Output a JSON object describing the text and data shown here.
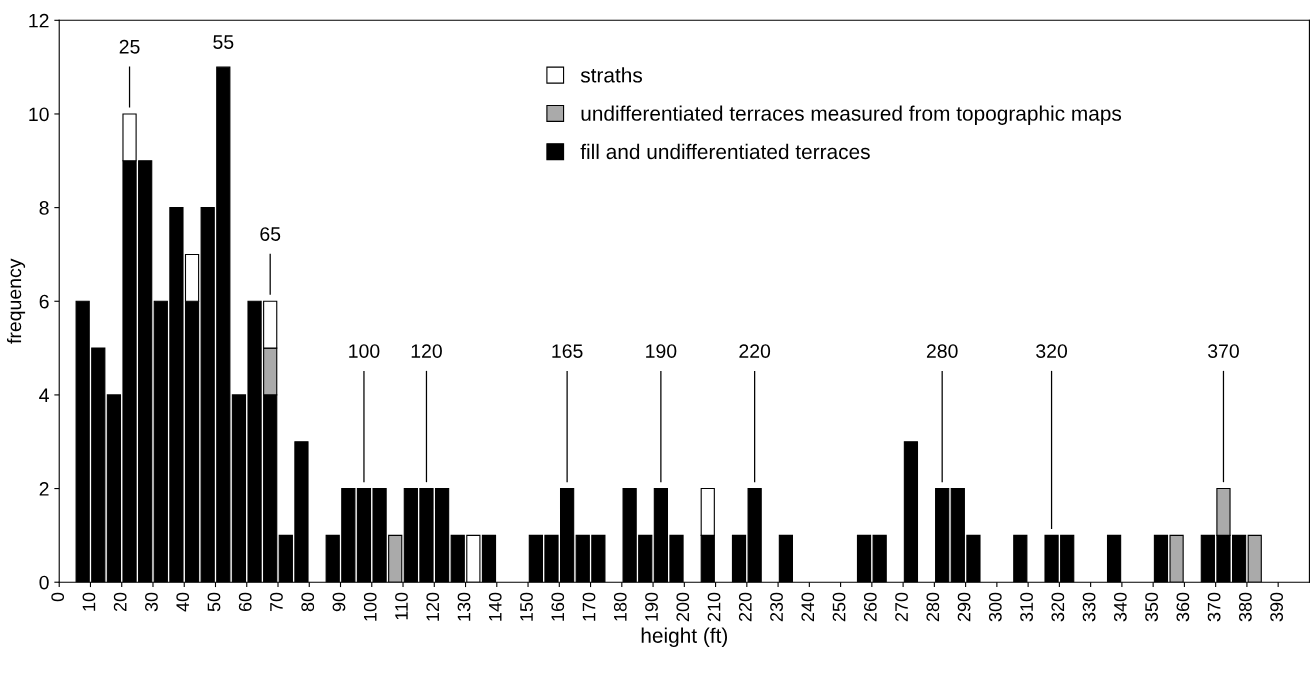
{
  "chart_data": {
    "type": "bar",
    "stacked": true,
    "xlabel": "height (ft)",
    "ylabel": "frequency",
    "x": [
      7.5,
      12.5,
      17.5,
      22.5,
      27.5,
      32.5,
      37.5,
      42.5,
      47.5,
      52.5,
      57.5,
      62.5,
      67.5,
      72.5,
      77.5,
      82.5,
      87.5,
      92.5,
      97.5,
      102.5,
      107.5,
      112.5,
      117.5,
      122.5,
      127.5,
      132.5,
      137.5,
      142.5,
      147.5,
      152.5,
      157.5,
      162.5,
      167.5,
      172.5,
      177.5,
      182.5,
      187.5,
      192.5,
      197.5,
      202.5,
      207.5,
      212.5,
      217.5,
      222.5,
      227.5,
      232.5,
      237.5,
      242.5,
      247.5,
      252.5,
      257.5,
      262.5,
      267.5,
      272.5,
      277.5,
      282.5,
      287.5,
      292.5,
      297.5,
      302.5,
      307.5,
      312.5,
      317.5,
      322.5,
      327.5,
      332.5,
      337.5,
      342.5,
      347.5,
      352.5,
      357.5,
      362.5,
      367.5,
      372.5,
      377.5,
      382.5
    ],
    "series": [
      {
        "name": "fill and undifferentiated terraces",
        "color": "#000000",
        "values": [
          6,
          5,
          4,
          9,
          9,
          6,
          8,
          6,
          8,
          11,
          4,
          6,
          4,
          1,
          3,
          0,
          1,
          2,
          2,
          2,
          0,
          2,
          2,
          2,
          1,
          0,
          1,
          0,
          0,
          1,
          1,
          2,
          1,
          1,
          0,
          2,
          1,
          2,
          1,
          0,
          1,
          0,
          1,
          2,
          0,
          1,
          0,
          0,
          0,
          0,
          1,
          1,
          0,
          3,
          0,
          2,
          2,
          1,
          0,
          0,
          1,
          0,
          1,
          1,
          0,
          0,
          1,
          0,
          0,
          1,
          0,
          0,
          1,
          1,
          1,
          0
        ]
      },
      {
        "name": "undifferentiated terraces measured from topographic maps",
        "color": "#aaaaaa",
        "values": [
          0,
          0,
          0,
          0,
          0,
          0,
          0,
          0,
          0,
          0,
          0,
          0,
          1,
          0,
          0,
          0,
          0,
          0,
          0,
          0,
          1,
          0,
          0,
          0,
          0,
          0,
          0,
          0,
          0,
          0,
          0,
          0,
          0,
          0,
          0,
          0,
          0,
          0,
          0,
          0,
          0,
          0,
          0,
          0,
          0,
          0,
          0,
          0,
          0,
          0,
          0,
          0,
          0,
          0,
          0,
          0,
          0,
          0,
          0,
          0,
          0,
          0,
          0,
          0,
          0,
          0,
          0,
          0,
          0,
          0,
          1,
          0,
          0,
          1,
          0,
          1
        ]
      },
      {
        "name": "straths",
        "color": "#ffffff",
        "values": [
          0,
          0,
          0,
          1,
          0,
          0,
          0,
          1,
          0,
          0,
          0,
          0,
          1,
          0,
          0,
          0,
          0,
          0,
          0,
          0,
          0,
          0,
          0,
          0,
          0,
          1,
          0,
          0,
          0,
          0,
          0,
          0,
          0,
          0,
          0,
          0,
          0,
          0,
          0,
          0,
          1,
          0,
          0,
          0,
          0,
          0,
          0,
          0,
          0,
          0,
          0,
          0,
          0,
          0,
          0,
          0,
          0,
          0,
          0,
          0,
          0,
          0,
          0,
          0,
          0,
          0,
          0,
          0,
          0,
          0,
          0,
          0,
          0,
          0,
          0,
          0
        ]
      }
    ],
    "xlim": [
      0,
      400
    ],
    "xticks": [
      0,
      10,
      20,
      30,
      40,
      50,
      60,
      70,
      80,
      90,
      100,
      110,
      120,
      130,
      140,
      150,
      160,
      170,
      180,
      190,
      200,
      210,
      220,
      230,
      240,
      250,
      260,
      270,
      280,
      290,
      300,
      310,
      320,
      330,
      340,
      350,
      360,
      370,
      380,
      390
    ],
    "ylim": [
      0,
      12
    ],
    "yticks": [
      0,
      2,
      4,
      6,
      8,
      10,
      12
    ],
    "grid": false,
    "legend": "top",
    "annotations": [
      {
        "text": "25",
        "x": 22.5,
        "y": 10
      },
      {
        "text": "55",
        "x": 52.5,
        "y": 11
      },
      {
        "text": "65",
        "x": 67.5,
        "y": 6
      },
      {
        "text": "100",
        "x": 97.5,
        "y": 2
      },
      {
        "text": "120",
        "x": 117.5,
        "y": 2
      },
      {
        "text": "165",
        "x": 162.5,
        "y": 2
      },
      {
        "text": "190",
        "x": 192.5,
        "y": 2
      },
      {
        "text": "220",
        "x": 222.5,
        "y": 2
      },
      {
        "text": "280",
        "x": 282.5,
        "y": 2
      },
      {
        "text": "320",
        "x": 317.5,
        "y": 1
      },
      {
        "text": "370",
        "x": 372.5,
        "y": 2
      }
    ]
  }
}
